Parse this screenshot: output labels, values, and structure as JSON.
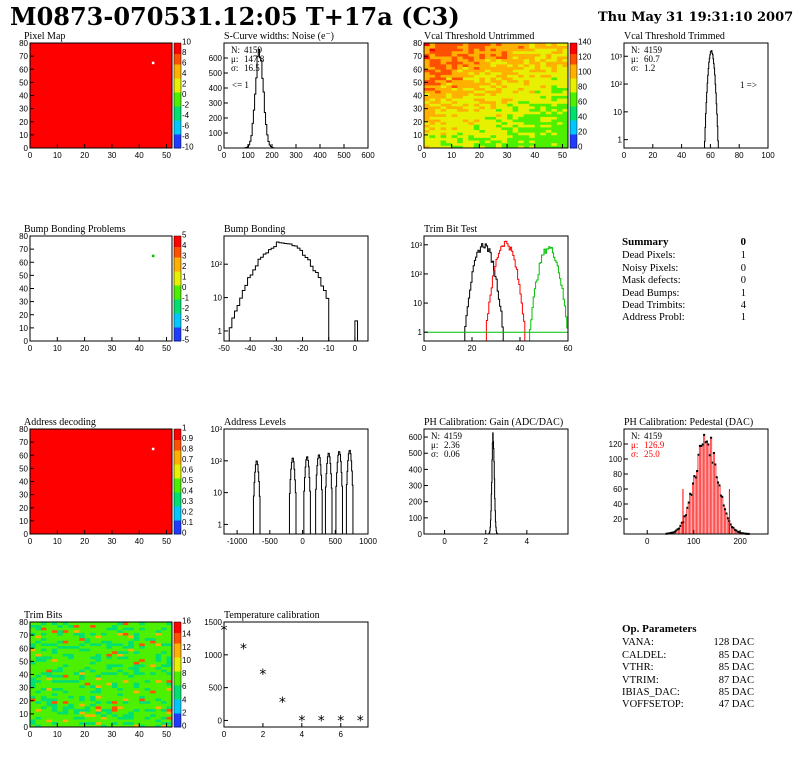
{
  "header": {
    "title": "M0873-070531.12:05 T+17a (C3)",
    "date": "Thu May 31 19:31:10 2007"
  },
  "colors": {
    "red": "#ff0000",
    "green": "#00c000",
    "black": "#000000"
  },
  "chart_data": [
    {
      "id": "pixel-map",
      "type": "heatmap",
      "title": "Pixel Map",
      "xlim": [
        0,
        52
      ],
      "ylim": [
        0,
        80
      ],
      "xticks": [
        "0",
        "10",
        "20",
        "30",
        "40",
        "50"
      ],
      "yticks": [
        "0",
        "10",
        "20",
        "30",
        "40",
        "50",
        "60",
        "70",
        "80"
      ],
      "zticks": [
        "-10",
        "-8",
        "-6",
        "-4",
        "-2",
        "0",
        "2",
        "4",
        "6",
        "8",
        "10"
      ],
      "fill": "red",
      "special_cells": [
        [
          45,
          65
        ]
      ]
    },
    {
      "id": "noise",
      "type": "histogram",
      "title": "S-Curve widths: Noise (e⁻)",
      "xlim": [
        0,
        600
      ],
      "ylim": [
        0,
        700
      ],
      "xticks": [
        "0",
        "100",
        "200",
        "300",
        "400",
        "500",
        "600"
      ],
      "yticks": [
        "0",
        "100",
        "200",
        "300",
        "400",
        "500",
        "600"
      ],
      "stats": [
        {
          "label": "N:",
          "value": "4159"
        },
        {
          "label": "μ:",
          "value": "147.8"
        },
        {
          "label": "σ:",
          "value": "16.5"
        }
      ],
      "annotation": "<= 1",
      "peak": {
        "x": 147.8,
        "height": 650,
        "sigma": 16.5
      }
    },
    {
      "id": "vcal-untrimmed",
      "type": "heatmap",
      "title": "Vcal Threshold Untrimmed",
      "xlim": [
        0,
        52
      ],
      "ylim": [
        0,
        80
      ],
      "xticks": [
        "0",
        "10",
        "20",
        "30",
        "40",
        "50"
      ],
      "yticks": [
        "0",
        "10",
        "20",
        "30",
        "40",
        "50",
        "60",
        "70",
        "80"
      ],
      "zticks": [
        "0",
        "20",
        "40",
        "60",
        "80",
        "100",
        "120",
        "140"
      ],
      "fill": "gradient-orange-yellow"
    },
    {
      "id": "vcal-trimmed",
      "type": "histogram",
      "title": "Vcal Threshold Trimmed",
      "xlim": [
        0,
        100
      ],
      "ylim": [
        0.5,
        3000
      ],
      "log_y": true,
      "xticks": [
        "0",
        "20",
        "40",
        "60",
        "80",
        "100"
      ],
      "yticks": [
        "1",
        "10",
        "10²",
        "10³"
      ],
      "stats": [
        {
          "label": "N:",
          "value": "4159"
        },
        {
          "label": "μ:",
          "value": "60.7"
        },
        {
          "label": "σ:",
          "value": "1.2"
        }
      ],
      "annotation": "1 =>",
      "peak": {
        "x": 60.7,
        "height": 1500,
        "sigma": 1.2
      }
    },
    {
      "id": "bump-problems",
      "type": "heatmap",
      "title": "Bump Bonding Problems",
      "xlim": [
        0,
        52
      ],
      "ylim": [
        0,
        80
      ],
      "xticks": [
        "0",
        "10",
        "20",
        "30",
        "40",
        "50"
      ],
      "yticks": [
        "0",
        "10",
        "20",
        "30",
        "40",
        "50",
        "60",
        "70",
        "80"
      ],
      "zticks": [
        "-5",
        "-4",
        "-3",
        "-2",
        "-1",
        "0",
        "1",
        "2",
        "3",
        "4",
        "5"
      ],
      "fill": "white",
      "special_cells": [
        [
          45,
          65
        ]
      ]
    },
    {
      "id": "bump-bonding",
      "type": "histogram",
      "title": "Bump Bonding",
      "xlim": [
        -50,
        5
      ],
      "ylim": [
        0.5,
        700
      ],
      "log_y": true,
      "xticks": [
        "-50",
        "-40",
        "-30",
        "-20",
        "-10",
        "0"
      ],
      "yticks": [
        "1",
        "10",
        "10²"
      ],
      "peak": {
        "x": -27,
        "height": 450,
        "sigma": 6
      }
    },
    {
      "id": "trim-bit-test",
      "type": "histogram",
      "title": "Trim Bit Test",
      "xlim": [
        0,
        60
      ],
      "ylim": [
        0.5,
        2000
      ],
      "log_y": true,
      "xticks": [
        "0",
        "20",
        "40",
        "60"
      ],
      "yticks": [
        "1",
        "10",
        "10²",
        "10³"
      ],
      "series": [
        {
          "color": "black",
          "x": 25,
          "height": 1000
        },
        {
          "color": "red",
          "x": 34,
          "height": 1200
        },
        {
          "color": "green",
          "x": 52,
          "height": 800
        }
      ]
    },
    {
      "id": "address-decoding",
      "type": "heatmap",
      "title": "Address decoding",
      "xlim": [
        0,
        52
      ],
      "ylim": [
        0,
        80
      ],
      "xticks": [
        "0",
        "10",
        "20",
        "30",
        "40",
        "50"
      ],
      "yticks": [
        "0",
        "10",
        "20",
        "30",
        "40",
        "50",
        "60",
        "70",
        "80"
      ],
      "zticks": [
        "0",
        "0.1",
        "0.2",
        "0.3",
        "0.4",
        "0.5",
        "0.6",
        "0.7",
        "0.8",
        "0.9",
        "1"
      ],
      "fill": "red",
      "special_cells": [
        [
          45,
          65
        ]
      ]
    },
    {
      "id": "address-levels",
      "type": "histogram",
      "title": "Address Levels",
      "xlim": [
        -1200,
        1000
      ],
      "ylim": [
        0.5,
        1000
      ],
      "log_y": true,
      "xticks": [
        "-1000",
        "-500",
        "0",
        "500",
        "1000"
      ],
      "yticks": [
        "1",
        "10",
        "10²",
        "10³"
      ],
      "spikes": [
        -700,
        -150,
        70,
        250,
        400,
        560,
        720
      ]
    },
    {
      "id": "ph-gain",
      "type": "histogram",
      "title": "PH Calibration: Gain (ADC/DAC)",
      "xlim": [
        -1,
        6
      ],
      "ylim": [
        0,
        650
      ],
      "xticks": [
        "0",
        "2",
        "4"
      ],
      "yticks": [
        "0",
        "100",
        "200",
        "300",
        "400",
        "500",
        "600"
      ],
      "stats": [
        {
          "label": "N:",
          "value": "4159"
        },
        {
          "label": "μ:",
          "value": "2.36"
        },
        {
          "label": "σ:",
          "value": "0.06"
        }
      ],
      "peak": {
        "x": 2.36,
        "height": 600,
        "sigma": 0.06
      }
    },
    {
      "id": "ph-pedestal",
      "type": "histogram",
      "title": "PH Calibration: Pedestal (DAC)",
      "xlim": [
        -50,
        260
      ],
      "ylim": [
        0,
        140
      ],
      "xticks": [
        "0",
        "100",
        "200"
      ],
      "yticks": [
        "20",
        "40",
        "60",
        "80",
        "100",
        "120"
      ],
      "stats": [
        {
          "label": "N:",
          "value": "4159",
          "color": "black"
        },
        {
          "label": "μ:",
          "value": "126.9",
          "color": "red"
        },
        {
          "label": "σ:",
          "value": "25.0",
          "color": "red"
        }
      ],
      "peak": {
        "x": 126.9,
        "height": 125,
        "sigma": 25
      }
    },
    {
      "id": "trim-bits",
      "type": "heatmap",
      "title": "Trim Bits",
      "xlim": [
        0,
        52
      ],
      "ylim": [
        0,
        80
      ],
      "xticks": [
        "0",
        "10",
        "20",
        "30",
        "40",
        "50"
      ],
      "yticks": [
        "0",
        "10",
        "20",
        "30",
        "40",
        "50",
        "60",
        "70",
        "80"
      ],
      "zticks": [
        "0",
        "2",
        "4",
        "6",
        "8",
        "10",
        "12",
        "14",
        "16"
      ],
      "fill": "gradient-green"
    },
    {
      "id": "temperature",
      "type": "scatter",
      "title": "Temperature calibration",
      "xlim": [
        0,
        7.4
      ],
      "ylim": [
        -100,
        1500
      ],
      "xticks": [
        "0",
        "2",
        "4",
        "6"
      ],
      "yticks": [
        "0",
        "500",
        "1000",
        "1500"
      ],
      "x": [
        0,
        1,
        2,
        3,
        4,
        5,
        6,
        7
      ],
      "y": [
        1380,
        1100,
        710,
        280,
        0,
        0,
        0,
        0
      ]
    }
  ],
  "summary": {
    "title": "Summary",
    "value": "0",
    "rows": [
      {
        "label": "Dead Pixels:",
        "value": "1"
      },
      {
        "label": "Noisy Pixels:",
        "value": "0"
      },
      {
        "label": "Mask defects:",
        "value": "0"
      },
      {
        "label": "Dead Bumps:",
        "value": "1"
      },
      {
        "label": "Dead Trimbits:",
        "value": "4"
      },
      {
        "label": "Address Probl:",
        "value": "1"
      }
    ]
  },
  "op_params": {
    "title": "Op. Parameters",
    "rows": [
      {
        "label": "VANA:",
        "value": "128 DAC"
      },
      {
        "label": "CALDEL:",
        "value": "85 DAC"
      },
      {
        "label": "VTHR:",
        "value": "85 DAC"
      },
      {
        "label": "VTRIM:",
        "value": "87 DAC"
      },
      {
        "label": "IBIAS_DAC:",
        "value": "85 DAC"
      },
      {
        "label": "VOFFSETOP:",
        "value": "47 DAC"
      }
    ]
  }
}
